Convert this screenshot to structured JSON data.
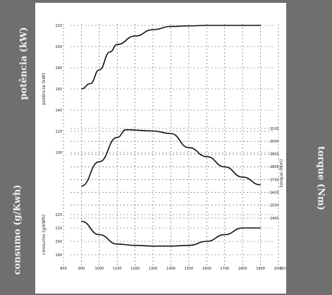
{
  "side_labels": {
    "left_top": "potência (kW)",
    "left_bottom": "consumo (g/Kwh)",
    "right": "torque (Nm)"
  },
  "colors": {
    "background": "#6f6f6f",
    "panel": "#ffffff",
    "ink": "#111111"
  },
  "chart_data": {
    "type": "line",
    "x": {
      "unit": "1/min",
      "ticks": [
        800,
        900,
        1000,
        1100,
        1200,
        1300,
        1400,
        1500,
        1600,
        1700,
        1800,
        1900,
        2000
      ],
      "tick_labels": [
        "800",
        "900",
        "1000",
        "1100",
        "1200",
        "1300",
        "1400",
        "1500",
        "1600",
        "1700",
        "1800",
        "1900",
        "2000"
      ],
      "unit_label": "1/min",
      "range": [
        800,
        2000
      ]
    },
    "panels": [
      {
        "name": "power",
        "ylabel": "potência (kW)",
        "y_axis_side": "left",
        "ylim": [
          100,
          220
        ],
        "ticks": [
          220,
          200,
          180,
          160,
          140,
          120,
          100
        ],
        "tick_labels": [
          "220",
          "200",
          "180",
          "160",
          "140",
          "120",
          "100"
        ],
        "series": [
          {
            "x": [
              900,
              950,
              1000,
              1060,
              1100,
              1200,
              1300,
              1400,
              1500,
              1600,
              1700,
              1800,
              1900
            ],
            "y": [
              160,
              165,
              178,
              195,
              202,
              210,
              216,
              219,
              219.5,
              220,
              220,
              220,
              220
            ]
          }
        ]
      },
      {
        "name": "torque",
        "ylabel": "torque (Nm)",
        "y_axis_side": "right",
        "ylim": [
          1400,
          2100
        ],
        "ticks": [
          2100,
          2000,
          1900,
          1800,
          1700,
          1600,
          1500,
          1400
        ],
        "tick_labels": [
          "2100",
          "2000",
          "1900",
          "1800",
          "1700",
          "1600",
          "1500",
          "1400"
        ],
        "series": [
          {
            "x": [
              900,
              1000,
              1100,
              1150,
              1300,
              1400,
              1500,
              1600,
              1700,
              1800,
              1900
            ],
            "y": [
              1650,
              1840,
              2030,
              2090,
              2080,
              2060,
              1950,
              1880,
              1800,
              1720,
              1660
            ]
          }
        ]
      },
      {
        "name": "consumption",
        "ylabel": "consumo (g/kWh)",
        "y_axis_side": "left",
        "ylim": [
          190,
          220
        ],
        "ticks": [
          220,
          210,
          200,
          190
        ],
        "tick_labels": [
          "220",
          "210",
          "200",
          "190"
        ],
        "series": [
          {
            "x": [
              900,
              1000,
              1100,
              1200,
              1300,
              1400,
              1500,
              1600,
              1700,
              1800,
              1900
            ],
            "y": [
              215,
              205,
              198,
              197,
              196.5,
              196.5,
              197,
              200,
              205,
              210,
              210
            ]
          }
        ]
      }
    ]
  }
}
